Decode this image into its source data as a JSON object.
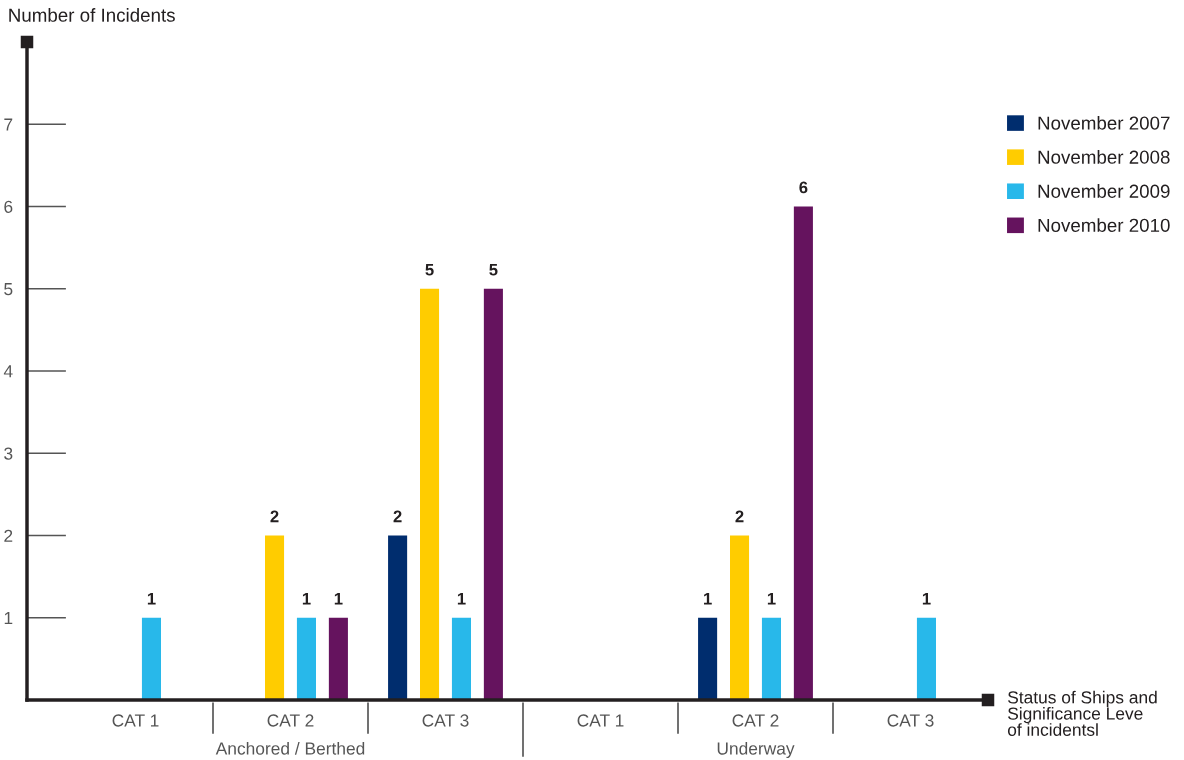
{
  "chart_data": {
    "type": "bar",
    "xlabel": "Status of Ships and\nSignificance Leve\nof incidentsl",
    "ylabel": "Number of Incidents",
    "categories": [
      "CAT 1",
      "CAT 2",
      "CAT 3",
      "CAT 1",
      "CAT 2",
      "CAT 3"
    ],
    "series": [
      {
        "name": "November 2007",
        "color": "#002d6e",
        "values": [
          null,
          null,
          2,
          null,
          1,
          null
        ]
      },
      {
        "name": "November 2008",
        "color": "#ffcc00",
        "values": [
          null,
          2,
          5,
          null,
          2,
          null
        ]
      },
      {
        "name": "November 2009",
        "color": "#28b8ea",
        "values": [
          1,
          1,
          1,
          null,
          1,
          1
        ]
      },
      {
        "name": "November 2010",
        "color": "#65135e",
        "values": [
          null,
          1,
          5,
          null,
          6,
          null
        ]
      }
    ],
    "ylim": [
      0,
      8
    ],
    "yticks": [
      1,
      2,
      3,
      4,
      5,
      6,
      7
    ],
    "data_labels": true,
    "legend": "top right",
    "annotations": [
      "Anchored / Berthed",
      "Underway"
    ]
  }
}
